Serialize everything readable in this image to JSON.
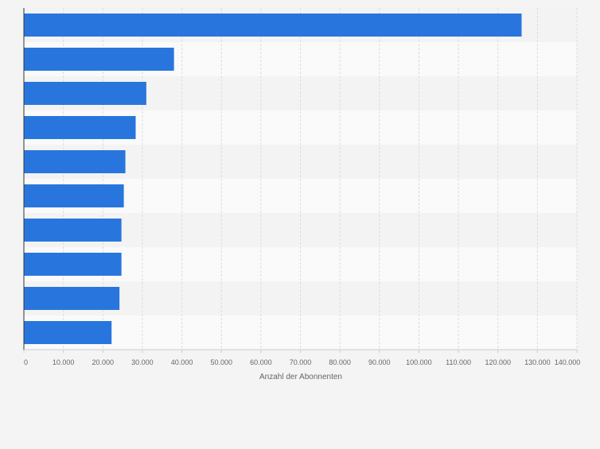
{
  "chart_data": {
    "type": "bar",
    "orientation": "horizontal",
    "title": "",
    "categories": [
      "",
      "",
      "",
      "",
      "",
      "",
      "",
      "",
      "",
      ""
    ],
    "values": [
      126000,
      38000,
      31000,
      28300,
      25700,
      25300,
      24700,
      24700,
      24200,
      22200
    ],
    "xlabel": "Anzahl der Abonnenten",
    "ylabel": "",
    "xlim": [
      0,
      140000
    ],
    "x_ticks": [
      0,
      10000,
      20000,
      30000,
      40000,
      50000,
      60000,
      70000,
      80000,
      90000,
      100000,
      110000,
      120000,
      130000,
      140000
    ],
    "x_tick_labels": [
      "0",
      "10.000",
      "20.000",
      "30.000",
      "40.000",
      "50.000",
      "60.000",
      "70.000",
      "80.000",
      "90.000",
      "100.000",
      "110.000",
      "120.000",
      "130.000",
      "140.000"
    ],
    "grid": true,
    "colors": {
      "bar": "#2876dd",
      "band_light": "#fafafa",
      "band_dark": "#f3f3f3",
      "grid": "#dcdcdc",
      "axis": "#333333",
      "tick_text": "#666666",
      "background": "#f4f4f4"
    }
  }
}
